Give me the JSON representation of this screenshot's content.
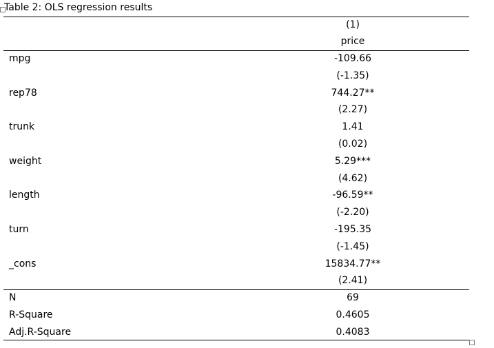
{
  "table": {
    "title": "Table 2: OLS regression results",
    "column_number": "(1)",
    "column_header": "price",
    "variables": [
      {
        "name": "mpg",
        "coef": "-109.66",
        "t": "(-1.35)"
      },
      {
        "name": "rep78",
        "coef": "744.27**",
        "t": "(2.27)"
      },
      {
        "name": "trunk",
        "coef": "1.41",
        "t": "(0.02)"
      },
      {
        "name": "weight",
        "coef": "5.29***",
        "t": "(4.62)"
      },
      {
        "name": "length",
        "coef": "-96.59**",
        "t": "(-2.20)"
      },
      {
        "name": "turn",
        "coef": "-195.35",
        "t": "(-1.45)"
      },
      {
        "name": "_cons",
        "coef": "15834.77**",
        "t": "(2.41)"
      }
    ],
    "stats": [
      {
        "name": "N",
        "value": "69"
      },
      {
        "name": "R-Square",
        "value": "0.4605"
      },
      {
        "name": "Adj.R-Square",
        "value": "0.4083"
      }
    ]
  }
}
